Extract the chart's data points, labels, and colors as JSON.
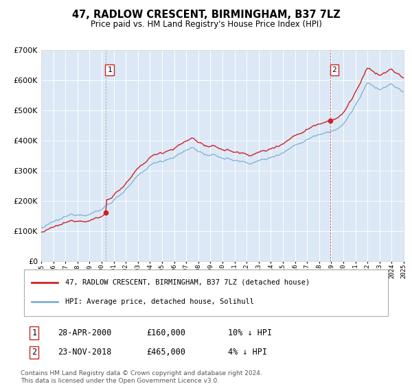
{
  "title": "47, RADLOW CRESCENT, BIRMINGHAM, B37 7LZ",
  "subtitle": "Price paid vs. HM Land Registry's House Price Index (HPI)",
  "legend_property": "47, RADLOW CRESCENT, BIRMINGHAM, B37 7LZ (detached house)",
  "legend_hpi": "HPI: Average price, detached house, Solihull",
  "annotation1_label": "1",
  "annotation1_date": "28-APR-2000",
  "annotation1_price": "£160,000",
  "annotation1_hpi": "10% ↓ HPI",
  "annotation1_year": 2000.32,
  "annotation1_value": 160000,
  "annotation2_label": "2",
  "annotation2_date": "23-NOV-2018",
  "annotation2_price": "£465,000",
  "annotation2_hpi": "4% ↓ HPI",
  "annotation2_year": 2018.9,
  "annotation2_value": 465000,
  "footer1": "Contains HM Land Registry data © Crown copyright and database right 2024.",
  "footer2": "This data is licensed under the Open Government Licence v3.0.",
  "bg_color": "#ffffff",
  "plot_bg_color": "#dce8f5",
  "grid_color": "#ffffff",
  "hpi_color": "#7bafd4",
  "property_color": "#cc2222",
  "ylim_min": 0,
  "ylim_max": 700000,
  "xmin": 1995,
  "xmax": 2025
}
